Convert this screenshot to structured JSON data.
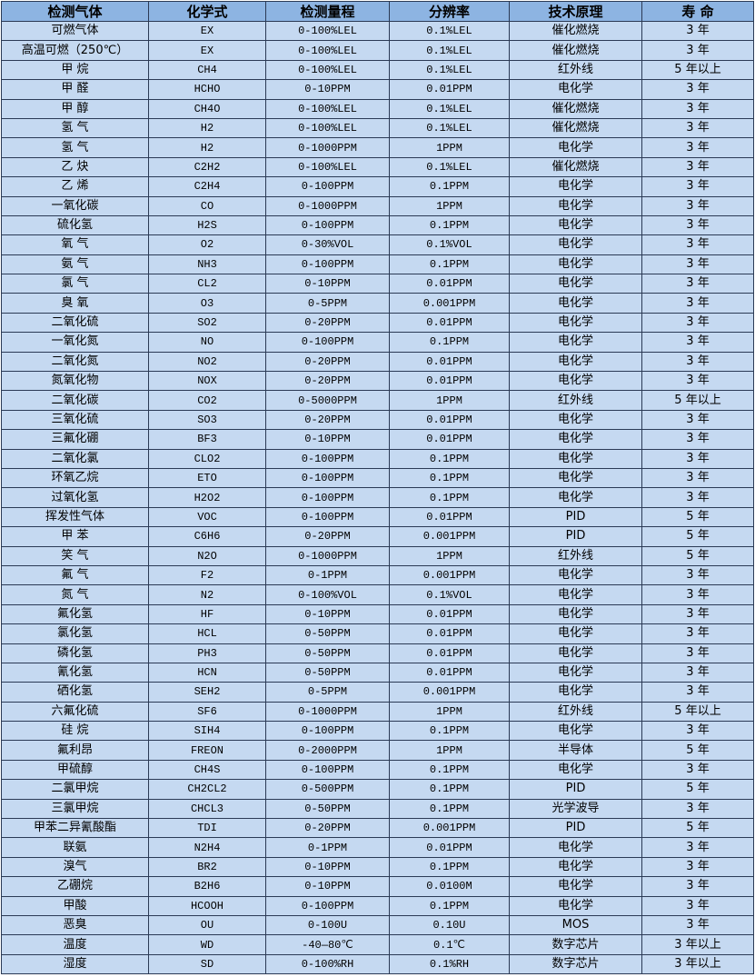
{
  "colors": {
    "header_bg": "#8db4e2",
    "row_bg": "#c5d9f1",
    "border": "#2b3a55"
  },
  "table": {
    "headers": [
      "检测气体",
      "化学式",
      "检测量程",
      "分辨率",
      "技术原理",
      "寿 命"
    ],
    "rows": [
      [
        "可燃气体",
        "EX",
        "0-100%LEL",
        "0.1%LEL",
        "催化燃烧",
        "3 年"
      ],
      [
        "高温可燃（250℃）",
        "EX",
        "0-100%LEL",
        "0.1%LEL",
        "催化燃烧",
        "3 年"
      ],
      [
        "甲 烷",
        "CH4",
        "0-100%LEL",
        "0.1%LEL",
        "红外线",
        "5 年以上"
      ],
      [
        "甲 醛",
        "HCHO",
        "0-10PPM",
        "0.01PPM",
        "电化学",
        "3 年"
      ],
      [
        "甲 醇",
        "CH4O",
        "0-100%LEL",
        "0.1%LEL",
        "催化燃烧",
        "3 年"
      ],
      [
        "氢 气",
        "H2",
        "0-100%LEL",
        "0.1%LEL",
        "催化燃烧",
        "3 年"
      ],
      [
        "氢 气",
        "H2",
        "0-1000PPM",
        "1PPM",
        "电化学",
        "3 年"
      ],
      [
        "乙 炔",
        "C2H2",
        "0-100%LEL",
        "0.1%LEL",
        "催化燃烧",
        "3 年"
      ],
      [
        "乙 烯",
        "C2H4",
        "0-100PPM",
        "0.1PPM",
        "电化学",
        "3 年"
      ],
      [
        "一氧化碳",
        "CO",
        "0-1000PPM",
        "1PPM",
        "电化学",
        "3 年"
      ],
      [
        "硫化氢",
        "H2S",
        "0-100PPM",
        "0.1PPM",
        "电化学",
        "3 年"
      ],
      [
        "氧 气",
        "O2",
        "0-30%VOL",
        "0.1%VOL",
        "电化学",
        "3 年"
      ],
      [
        "氨 气",
        "NH3",
        "0-100PPM",
        "0.1PPM",
        "电化学",
        "3 年"
      ],
      [
        "氯 气",
        "CL2",
        "0-10PPM",
        "0.01PPM",
        "电化学",
        "3 年"
      ],
      [
        "臭 氧",
        "O3",
        "0-5PPM",
        "0.001PPM",
        "电化学",
        "3 年"
      ],
      [
        "二氧化硫",
        "SO2",
        "0-20PPM",
        "0.01PPM",
        "电化学",
        "3 年"
      ],
      [
        "一氧化氮",
        "NO",
        "0-100PPM",
        "0.1PPM",
        "电化学",
        "3 年"
      ],
      [
        "二氧化氮",
        "NO2",
        "0-20PPM",
        "0.01PPM",
        "电化学",
        "3 年"
      ],
      [
        "氮氧化物",
        "NOX",
        "0-20PPM",
        "0.01PPM",
        "电化学",
        "3 年"
      ],
      [
        "二氧化碳",
        "CO2",
        "0-5000PPM",
        "1PPM",
        "红外线",
        "5 年以上"
      ],
      [
        "三氧化硫",
        "SO3",
        "0-20PPM",
        "0.01PPM",
        "电化学",
        "3 年"
      ],
      [
        "三氟化硼",
        "BF3",
        "0-10PPM",
        "0.01PPM",
        "电化学",
        "3 年"
      ],
      [
        "二氧化氯",
        "CLO2",
        "0-100PPM",
        "0.1PPM",
        "电化学",
        "3 年"
      ],
      [
        "环氧乙烷",
        "ETO",
        "0-100PPM",
        "0.1PPM",
        "电化学",
        "3 年"
      ],
      [
        "过氧化氢",
        "H2O2",
        "0-100PPM",
        "0.1PPM",
        "电化学",
        "3 年"
      ],
      [
        "挥发性气体",
        "VOC",
        "0-100PPM",
        "0.01PPM",
        "PID",
        "5 年"
      ],
      [
        "甲 苯",
        "C6H6",
        "0-20PPM",
        "0.001PPM",
        "PID",
        "5 年"
      ],
      [
        "笑 气",
        "N2O",
        "0-1000PPM",
        "1PPM",
        "红外线",
        "5 年"
      ],
      [
        "氟 气",
        "F2",
        "0-1PPM",
        "0.001PPM",
        "电化学",
        "3 年"
      ],
      [
        "氮 气",
        "N2",
        "0-100%VOL",
        "0.1%VOL",
        "电化学",
        "3 年"
      ],
      [
        "氟化氢",
        "HF",
        "0-10PPM",
        "0.01PPM",
        "电化学",
        "3 年"
      ],
      [
        "氯化氢",
        "HCL",
        "0-50PPM",
        "0.01PPM",
        "电化学",
        "3 年"
      ],
      [
        "磷化氢",
        "PH3",
        "0-50PPM",
        "0.01PPM",
        "电化学",
        "3 年"
      ],
      [
        "氰化氢",
        "HCN",
        "0-50PPM",
        "0.01PPM",
        "电化学",
        "3 年"
      ],
      [
        "硒化氢",
        "SEH2",
        "0-5PPM",
        "0.001PPM",
        "电化学",
        "3 年"
      ],
      [
        "六氟化硫",
        "SF6",
        "0-1000PPM",
        "1PPM",
        "红外线",
        "5 年以上"
      ],
      [
        "硅 烷",
        "SIH4",
        "0-100PPM",
        "0.1PPM",
        "电化学",
        "3 年"
      ],
      [
        "氟利昂",
        "FREON",
        "0-2000PPM",
        "1PPM",
        "半导体",
        "5 年"
      ],
      [
        "甲硫醇",
        "CH4S",
        "0-100PPM",
        "0.1PPM",
        "电化学",
        "3 年"
      ],
      [
        "二氯甲烷",
        "CH2CL2",
        "0-500PPM",
        "0.1PPM",
        "PID",
        "5 年"
      ],
      [
        "三氯甲烷",
        "CHCL3",
        "0-50PPM",
        "0.1PPM",
        "光学波导",
        "3 年"
      ],
      [
        "甲苯二异氰酸酯",
        "TDI",
        "0-20PPM",
        "0.001PPM",
        "PID",
        "5 年"
      ],
      [
        "联氨",
        "N2H4",
        "0-1PPM",
        "0.01PPM",
        "电化学",
        "3 年"
      ],
      [
        "溴气",
        "BR2",
        "0-10PPM",
        "0.1PPM",
        "电化学",
        "3 年"
      ],
      [
        "乙硼烷",
        "B2H6",
        "0-10PPM",
        "0.0100M",
        "电化学",
        "3 年"
      ],
      [
        "甲酸",
        "HCOOH",
        "0-100PPM",
        "0.1PPM",
        "电化学",
        "3 年"
      ],
      [
        "恶臭",
        "OU",
        "0-100U",
        "0.10U",
        "MOS",
        "3 年"
      ],
      [
        "温度",
        "WD",
        "-40—80℃",
        "0.1℃",
        "数字芯片",
        "3 年以上"
      ],
      [
        "湿度",
        "SD",
        "0-100%RH",
        "0.1%RH",
        "数字芯片",
        "3 年以上"
      ]
    ]
  }
}
